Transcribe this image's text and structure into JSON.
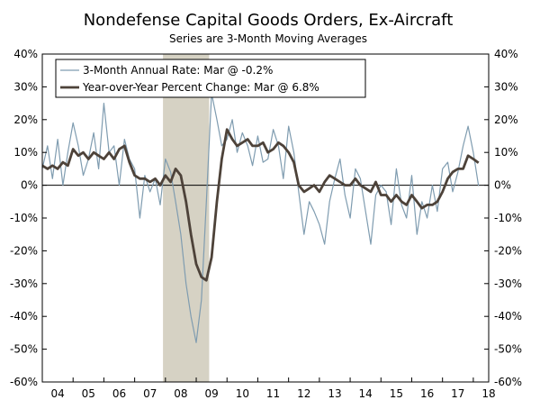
{
  "chart_data": {
    "type": "line",
    "title": "Nondefense Capital Goods Orders, Ex-Aircraft",
    "subtitle": "Series are 3-Month Moving Averages",
    "ylim": [
      -60,
      40
    ],
    "xlim": [
      2004.0,
      2018.5
    ],
    "y_ticks": [
      "-60%",
      "-50%",
      "-40%",
      "-30%",
      "-20%",
      "-10%",
      "0%",
      "10%",
      "20%",
      "30%",
      "40%"
    ],
    "x_ticks": [
      "04",
      "05",
      "06",
      "07",
      "08",
      "09",
      "10",
      "11",
      "12",
      "13",
      "14",
      "15",
      "16",
      "17",
      "18"
    ],
    "grid": false,
    "zero_line": true,
    "legend_position": "top-left",
    "recession_shading": [
      2007.92,
      2009.42
    ],
    "colors": {
      "series_rate": "#7f9cb0",
      "series_yoy": "#4d4239",
      "recession": "#d6d2c4"
    },
    "series": [
      {
        "name": "3-Month Annual Rate: Mar @ -0.2%",
        "x": [
          2004.0,
          2004.17,
          2004.33,
          2004.5,
          2004.67,
          2004.83,
          2005.0,
          2005.17,
          2005.33,
          2005.5,
          2005.67,
          2005.83,
          2006.0,
          2006.17,
          2006.33,
          2006.5,
          2006.67,
          2006.83,
          2007.0,
          2007.17,
          2007.33,
          2007.5,
          2007.67,
          2007.83,
          2008.0,
          2008.17,
          2008.33,
          2008.5,
          2008.67,
          2008.83,
          2009.0,
          2009.17,
          2009.33,
          2009.5,
          2009.67,
          2009.83,
          2010.0,
          2010.17,
          2010.33,
          2010.5,
          2010.67,
          2010.83,
          2011.0,
          2011.17,
          2011.33,
          2011.5,
          2011.67,
          2011.83,
          2012.0,
          2012.17,
          2012.33,
          2012.5,
          2012.67,
          2012.83,
          2013.0,
          2013.17,
          2013.33,
          2013.5,
          2013.67,
          2013.83,
          2014.0,
          2014.17,
          2014.33,
          2014.5,
          2014.67,
          2014.83,
          2015.0,
          2015.17,
          2015.33,
          2015.5,
          2015.67,
          2015.83,
          2016.0,
          2016.17,
          2016.33,
          2016.5,
          2016.67,
          2016.83,
          2017.0,
          2017.17,
          2017.33,
          2017.5,
          2017.67,
          2017.83,
          2018.0,
          2018.17
        ],
        "values": [
          5,
          12,
          2,
          14,
          0,
          10,
          19,
          12,
          3,
          8,
          16,
          5,
          25,
          10,
          12,
          0,
          14,
          8,
          5,
          -10,
          3,
          -2,
          2,
          -6,
          8,
          4,
          -5,
          -15,
          -30,
          -40,
          -48,
          -35,
          -5,
          28,
          20,
          12,
          14,
          20,
          10,
          16,
          12,
          6,
          15,
          7,
          8,
          17,
          12,
          2,
          18,
          10,
          -2,
          -15,
          -5,
          -8,
          -12,
          -18,
          -5,
          2,
          8,
          -3,
          -10,
          5,
          2,
          -8,
          -18,
          -3,
          0,
          -2,
          -12,
          5,
          -6,
          -10,
          3,
          -15,
          -5,
          -10,
          0,
          -8,
          5,
          7,
          -2,
          4,
          12,
          18,
          10,
          -0.2
        ]
      },
      {
        "name": "Year-over-Year Percent Change: Mar @ 6.8%",
        "x": [
          2004.0,
          2004.17,
          2004.33,
          2004.5,
          2004.67,
          2004.83,
          2005.0,
          2005.17,
          2005.33,
          2005.5,
          2005.67,
          2005.83,
          2006.0,
          2006.17,
          2006.33,
          2006.5,
          2006.67,
          2006.83,
          2007.0,
          2007.17,
          2007.33,
          2007.5,
          2007.67,
          2007.83,
          2008.0,
          2008.17,
          2008.33,
          2008.5,
          2008.67,
          2008.83,
          2009.0,
          2009.17,
          2009.33,
          2009.5,
          2009.67,
          2009.83,
          2010.0,
          2010.17,
          2010.33,
          2010.5,
          2010.67,
          2010.83,
          2011.0,
          2011.17,
          2011.33,
          2011.5,
          2011.67,
          2011.83,
          2012.0,
          2012.17,
          2012.33,
          2012.5,
          2012.67,
          2012.83,
          2013.0,
          2013.17,
          2013.33,
          2013.5,
          2013.67,
          2013.83,
          2014.0,
          2014.17,
          2014.33,
          2014.5,
          2014.67,
          2014.83,
          2015.0,
          2015.17,
          2015.33,
          2015.5,
          2015.67,
          2015.83,
          2016.0,
          2016.17,
          2016.33,
          2016.5,
          2016.67,
          2016.83,
          2017.0,
          2017.17,
          2017.33,
          2017.5,
          2017.67,
          2017.83,
          2018.0,
          2018.17
        ],
        "values": [
          6,
          5,
          6,
          5,
          7,
          6,
          11,
          9,
          10,
          8,
          10,
          9,
          8,
          10,
          8,
          11,
          12,
          7,
          3,
          2,
          2,
          1,
          2,
          0,
          3,
          1,
          5,
          3,
          -5,
          -15,
          -24,
          -28,
          -29,
          -22,
          -5,
          8,
          17,
          14,
          12,
          13,
          14,
          12,
          12,
          13,
          10,
          11,
          13,
          12,
          10,
          7,
          0,
          -2,
          -1,
          0,
          -2,
          1,
          3,
          2,
          1,
          0,
          0,
          2,
          0,
          -1,
          -2,
          1,
          -3,
          -3,
          -5,
          -3,
          -5,
          -6,
          -3,
          -5,
          -7,
          -6,
          -6,
          -5,
          -2,
          2,
          4,
          5,
          5,
          9,
          8,
          6.8
        ]
      }
    ]
  }
}
